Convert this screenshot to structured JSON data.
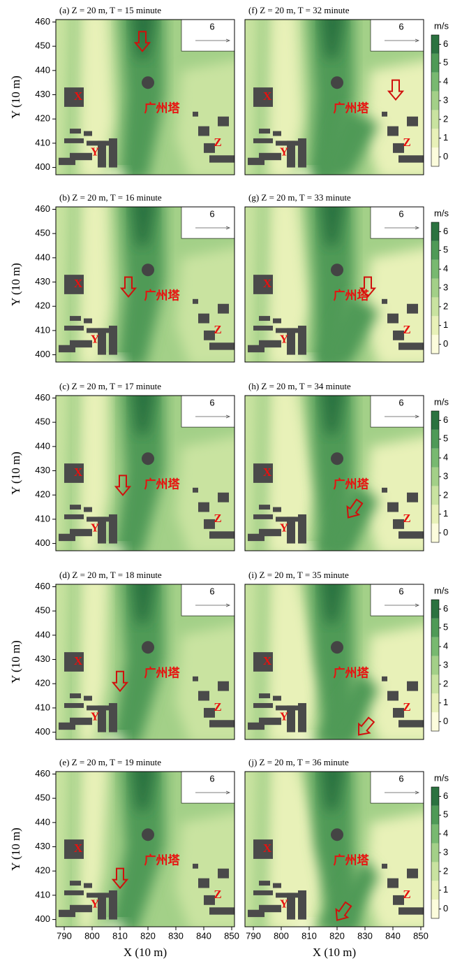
{
  "chart_data": [
    {
      "type": "contour",
      "title": "(a) Z = 20 m, T = 15 minute",
      "ylabel": "Y (10 m)",
      "xlim": [
        787,
        851
      ],
      "ylim": [
        397,
        461
      ],
      "yticks": [
        400,
        410,
        420,
        430,
        440,
        450,
        460
      ],
      "labels": [
        "X",
        "Y",
        "Z",
        "广州塔"
      ],
      "vector_ref": "6"
    },
    {
      "type": "contour",
      "title": "(b) Z = 20 m, T = 16 minute",
      "ylabel": "Y (10 m)",
      "xlim": [
        787,
        851
      ],
      "ylim": [
        397,
        461
      ],
      "yticks": [
        400,
        410,
        420,
        430,
        440,
        450,
        460
      ],
      "labels": [
        "X",
        "Y",
        "Z",
        "广州塔"
      ],
      "vector_ref": "6"
    },
    {
      "type": "contour",
      "title": "(c) Z = 20 m, T = 17 minute",
      "ylabel": "Y (10 m)",
      "xlim": [
        787,
        851
      ],
      "ylim": [
        397,
        461
      ],
      "yticks": [
        400,
        410,
        420,
        430,
        440,
        450,
        460
      ],
      "labels": [
        "X",
        "Y",
        "Z",
        "广州塔"
      ],
      "vector_ref": "6"
    },
    {
      "type": "contour",
      "title": "(d) Z = 20 m, T = 18 minute",
      "ylabel": "Y (10 m)",
      "xlim": [
        787,
        851
      ],
      "ylim": [
        397,
        461
      ],
      "yticks": [
        400,
        410,
        420,
        430,
        440,
        450,
        460
      ],
      "labels": [
        "X",
        "Y",
        "Z",
        "广州塔"
      ],
      "vector_ref": "6"
    },
    {
      "type": "contour",
      "title": "(e) Z = 20 m, T = 19 minute",
      "ylabel": "Y (10 m)",
      "xlabel": "X (10 m)",
      "xlim": [
        787,
        851
      ],
      "ylim": [
        397,
        461
      ],
      "xticks": [
        790,
        800,
        810,
        820,
        830,
        840,
        850
      ],
      "yticks": [
        400,
        410,
        420,
        430,
        440,
        450,
        460
      ],
      "labels": [
        "X",
        "Y",
        "Z",
        "广州塔"
      ],
      "vector_ref": "6"
    },
    {
      "type": "contour",
      "title": "(f) Z = 20 m, T = 32 minute",
      "xlim": [
        787,
        851
      ],
      "ylim": [
        397,
        461
      ],
      "labels": [
        "X",
        "Y",
        "Z",
        "广州塔"
      ],
      "vector_ref": "6",
      "colorbar": {
        "label": "m/s",
        "lim": [
          -0.5,
          6.5
        ],
        "ticks": [
          0,
          1,
          2,
          3,
          4,
          5,
          6
        ],
        "colors": [
          "#fcfcdc",
          "#e8f1b8",
          "#c9e3a0",
          "#a3d088",
          "#78b970",
          "#4f9a57",
          "#2b7240"
        ]
      }
    },
    {
      "type": "contour",
      "title": "(g) Z = 20 m, T = 33 minute",
      "xlim": [
        787,
        851
      ],
      "ylim": [
        397,
        461
      ],
      "labels": [
        "X",
        "Y",
        "Z",
        "广州塔"
      ],
      "vector_ref": "6",
      "colorbar": {
        "label": "m/s",
        "lim": [
          -0.5,
          6.5
        ],
        "ticks": [
          0,
          1,
          2,
          3,
          4,
          5,
          6
        ],
        "colors": [
          "#fcfcdc",
          "#e8f1b8",
          "#c9e3a0",
          "#a3d088",
          "#78b970",
          "#4f9a57",
          "#2b7240"
        ]
      }
    },
    {
      "type": "contour",
      "title": "(h) Z = 20 m, T = 34 minute",
      "xlim": [
        787,
        851
      ],
      "ylim": [
        397,
        461
      ],
      "labels": [
        "X",
        "Y",
        "Z",
        "广州塔"
      ],
      "vector_ref": "6",
      "colorbar": {
        "label": "m/s",
        "lim": [
          -0.5,
          6.5
        ],
        "ticks": [
          0,
          1,
          2,
          3,
          4,
          5,
          6
        ],
        "colors": [
          "#fcfcdc",
          "#e8f1b8",
          "#c9e3a0",
          "#a3d088",
          "#78b970",
          "#4f9a57",
          "#2b7240"
        ]
      }
    },
    {
      "type": "contour",
      "title": "(i) Z = 20 m, T = 35 minute",
      "xlim": [
        787,
        851
      ],
      "ylim": [
        397,
        461
      ],
      "labels": [
        "X",
        "Y",
        "Z",
        "广州塔"
      ],
      "vector_ref": "6",
      "colorbar": {
        "label": "m/s",
        "lim": [
          -0.5,
          6.5
        ],
        "ticks": [
          0,
          1,
          2,
          3,
          4,
          5,
          6
        ],
        "colors": [
          "#fcfcdc",
          "#e8f1b8",
          "#c9e3a0",
          "#a3d088",
          "#78b970",
          "#4f9a57",
          "#2b7240"
        ]
      }
    },
    {
      "type": "contour",
      "title": "(j) Z = 20 m, T = 36 minute",
      "xlabel": "X (10 m)",
      "xlim": [
        787,
        851
      ],
      "ylim": [
        397,
        461
      ],
      "xticks": [
        790,
        800,
        810,
        820,
        830,
        840,
        850
      ],
      "labels": [
        "X",
        "Y",
        "Z",
        "广州塔"
      ],
      "vector_ref": "6",
      "colorbar": {
        "label": "m/s",
        "lim": [
          -0.5,
          6.5
        ],
        "ticks": [
          0,
          1,
          2,
          3,
          4,
          5,
          6
        ],
        "colors": [
          "#fcfcdc",
          "#e8f1b8",
          "#c9e3a0",
          "#a3d088",
          "#78b970",
          "#4f9a57",
          "#2b7240"
        ]
      }
    }
  ]
}
